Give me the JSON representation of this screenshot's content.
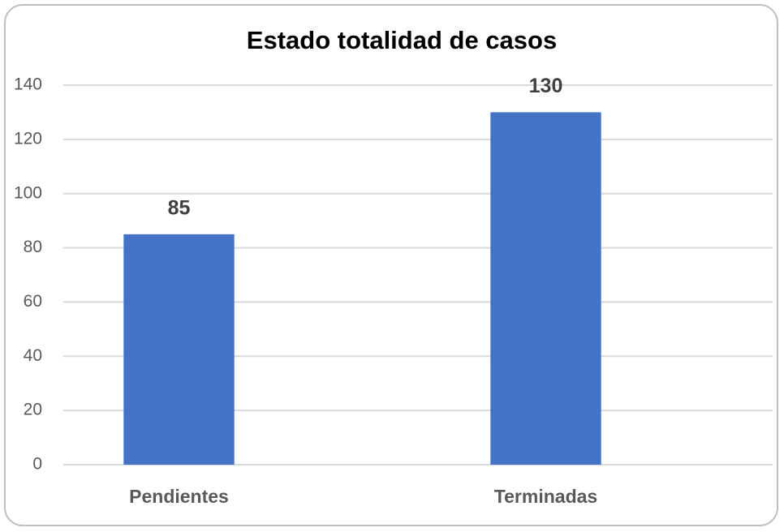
{
  "chart_data": {
    "type": "bar",
    "title": "Estado totalidad de casos",
    "categories": [
      "Pendientes",
      "Terminadas"
    ],
    "values": [
      85,
      130
    ],
    "color": "#4472c4",
    "ylim": [
      0,
      140
    ],
    "yticks": [
      0,
      20,
      40,
      60,
      80,
      100,
      120,
      140
    ],
    "grid": true,
    "data_labels": true
  }
}
